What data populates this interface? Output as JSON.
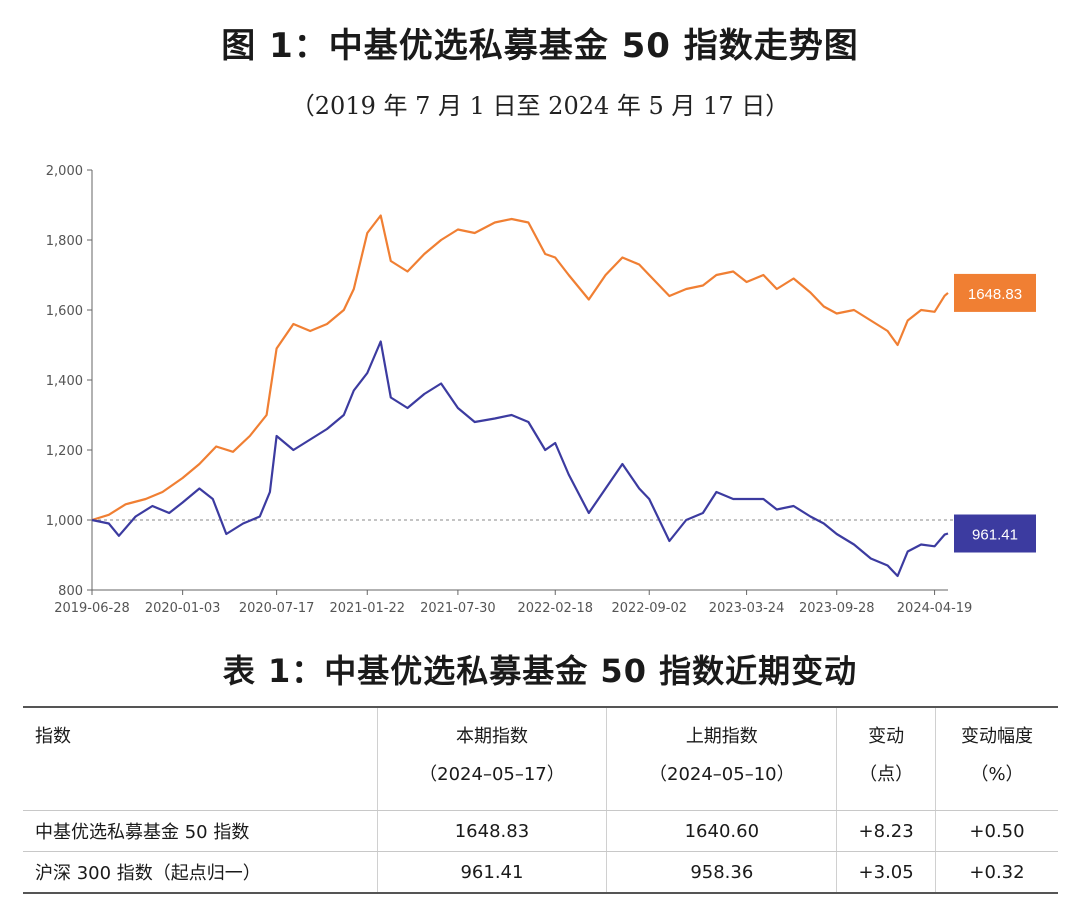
{
  "figure": {
    "title": "图 1：中基优选私募基金 50 指数走势图",
    "subtitle": "（2019 年 7 月 1 日至 2024 年 5 月 17 日）"
  },
  "chart_data": {
    "type": "line",
    "title": "",
    "xlabel": "",
    "ylabel": "",
    "ylim": [
      800,
      2000
    ],
    "yticks": [
      800,
      1000,
      1200,
      1400,
      1600,
      1800,
      2000
    ],
    "ytick_labels": [
      "800",
      "1,000",
      "1,200",
      "1,400",
      "1,600",
      "1,800",
      "2,000"
    ],
    "xticks": [
      "2019-06-28",
      "2020-01-03",
      "2020-07-17",
      "2021-01-22",
      "2021-07-30",
      "2022-02-18",
      "2022-09-02",
      "2023-03-24",
      "2023-09-28",
      "2024-04-19"
    ],
    "xlim": [
      "2019-06-28",
      "2024-05-17"
    ],
    "reference_line": 1000,
    "grid": false,
    "series": [
      {
        "color": "#f07f33",
        "end_label": "1648.83",
        "points": [
          [
            "2019-06-28",
            1000
          ],
          [
            "2019-08-02",
            1015
          ],
          [
            "2019-09-06",
            1045
          ],
          [
            "2019-10-18",
            1060
          ],
          [
            "2019-11-22",
            1080
          ],
          [
            "2020-01-03",
            1120
          ],
          [
            "2020-02-07",
            1160
          ],
          [
            "2020-03-13",
            1210
          ],
          [
            "2020-04-17",
            1195
          ],
          [
            "2020-05-22",
            1240
          ],
          [
            "2020-06-26",
            1300
          ],
          [
            "2020-07-17",
            1490
          ],
          [
            "2020-08-21",
            1560
          ],
          [
            "2020-09-25",
            1540
          ],
          [
            "2020-10-30",
            1560
          ],
          [
            "2020-12-04",
            1600
          ],
          [
            "2020-12-25",
            1660
          ],
          [
            "2021-01-22",
            1820
          ],
          [
            "2021-02-19",
            1870
          ],
          [
            "2021-03-12",
            1740
          ],
          [
            "2021-04-16",
            1710
          ],
          [
            "2021-05-21",
            1760
          ],
          [
            "2021-06-25",
            1800
          ],
          [
            "2021-07-30",
            1830
          ],
          [
            "2021-09-03",
            1820
          ],
          [
            "2021-10-15",
            1850
          ],
          [
            "2021-11-19",
            1860
          ],
          [
            "2021-12-24",
            1850
          ],
          [
            "2022-01-28",
            1760
          ],
          [
            "2022-02-18",
            1750
          ],
          [
            "2022-03-18",
            1700
          ],
          [
            "2022-04-29",
            1630
          ],
          [
            "2022-06-03",
            1700
          ],
          [
            "2022-07-08",
            1750
          ],
          [
            "2022-08-12",
            1730
          ],
          [
            "2022-09-02",
            1700
          ],
          [
            "2022-10-14",
            1640
          ],
          [
            "2022-11-18",
            1660
          ],
          [
            "2022-12-23",
            1670
          ],
          [
            "2023-01-20",
            1700
          ],
          [
            "2023-02-24",
            1710
          ],
          [
            "2023-03-24",
            1680
          ],
          [
            "2023-04-28",
            1700
          ],
          [
            "2023-05-26",
            1660
          ],
          [
            "2023-06-30",
            1690
          ],
          [
            "2023-08-04",
            1650
          ],
          [
            "2023-09-01",
            1610
          ],
          [
            "2023-09-28",
            1590
          ],
          [
            "2023-11-03",
            1600
          ],
          [
            "2023-12-08",
            1570
          ],
          [
            "2024-01-12",
            1540
          ],
          [
            "2024-02-02",
            1500
          ],
          [
            "2024-02-23",
            1570
          ],
          [
            "2024-03-22",
            1600
          ],
          [
            "2024-04-19",
            1595
          ],
          [
            "2024-05-10",
            1640.6
          ],
          [
            "2024-05-17",
            1648.83
          ]
        ]
      },
      {
        "color": "#3c3ba0",
        "end_label": "961.41",
        "points": [
          [
            "2019-06-28",
            1000
          ],
          [
            "2019-08-02",
            990
          ],
          [
            "2019-08-23",
            955
          ],
          [
            "2019-09-27",
            1010
          ],
          [
            "2019-11-01",
            1040
          ],
          [
            "2019-12-06",
            1020
          ],
          [
            "2020-01-03",
            1050
          ],
          [
            "2020-02-07",
            1090
          ],
          [
            "2020-03-06",
            1060
          ],
          [
            "2020-04-03",
            960
          ],
          [
            "2020-05-08",
            990
          ],
          [
            "2020-06-12",
            1010
          ],
          [
            "2020-07-03",
            1080
          ],
          [
            "2020-07-17",
            1240
          ],
          [
            "2020-08-21",
            1200
          ],
          [
            "2020-09-25",
            1230
          ],
          [
            "2020-10-30",
            1260
          ],
          [
            "2020-12-04",
            1300
          ],
          [
            "2020-12-25",
            1370
          ],
          [
            "2021-01-22",
            1420
          ],
          [
            "2021-02-19",
            1510
          ],
          [
            "2021-03-12",
            1350
          ],
          [
            "2021-04-16",
            1320
          ],
          [
            "2021-05-21",
            1360
          ],
          [
            "2021-06-25",
            1390
          ],
          [
            "2021-07-30",
            1320
          ],
          [
            "2021-09-03",
            1280
          ],
          [
            "2021-10-15",
            1290
          ],
          [
            "2021-11-19",
            1300
          ],
          [
            "2021-12-24",
            1280
          ],
          [
            "2022-01-28",
            1200
          ],
          [
            "2022-02-18",
            1220
          ],
          [
            "2022-03-18",
            1130
          ],
          [
            "2022-04-29",
            1020
          ],
          [
            "2022-06-03",
            1090
          ],
          [
            "2022-07-08",
            1160
          ],
          [
            "2022-08-12",
            1090
          ],
          [
            "2022-09-02",
            1060
          ],
          [
            "2022-10-14",
            940
          ],
          [
            "2022-11-18",
            1000
          ],
          [
            "2022-12-23",
            1020
          ],
          [
            "2023-01-20",
            1080
          ],
          [
            "2023-02-24",
            1060
          ],
          [
            "2023-03-24",
            1060
          ],
          [
            "2023-04-28",
            1060
          ],
          [
            "2023-05-26",
            1030
          ],
          [
            "2023-06-30",
            1040
          ],
          [
            "2023-08-04",
            1010
          ],
          [
            "2023-09-01",
            990
          ],
          [
            "2023-09-28",
            960
          ],
          [
            "2023-11-03",
            930
          ],
          [
            "2023-12-08",
            890
          ],
          [
            "2024-01-12",
            870
          ],
          [
            "2024-02-02",
            840
          ],
          [
            "2024-02-23",
            910
          ],
          [
            "2024-03-22",
            930
          ],
          [
            "2024-04-19",
            925
          ],
          [
            "2024-05-10",
            958.36
          ],
          [
            "2024-05-17",
            961.41
          ]
        ]
      }
    ]
  },
  "table": {
    "title": "表 1：中基优选私募基金 50 指数近期变动",
    "headers": [
      {
        "line1": "指数",
        "line2": ""
      },
      {
        "line1": "本期指数",
        "line2": "（2024–05–17）"
      },
      {
        "line1": "上期指数",
        "line2": "（2024–05–10）"
      },
      {
        "line1": "变动",
        "line2": "（点）"
      },
      {
        "line1": "变动幅度",
        "line2": "（%）"
      }
    ],
    "rows": [
      [
        "中基优选私募基金 50 指数",
        "1648.83",
        "1640.60",
        "+8.23",
        "+0.50"
      ],
      [
        "沪深 300 指数（起点归一）",
        "961.41",
        "958.36",
        "+3.05",
        "+0.32"
      ]
    ]
  }
}
